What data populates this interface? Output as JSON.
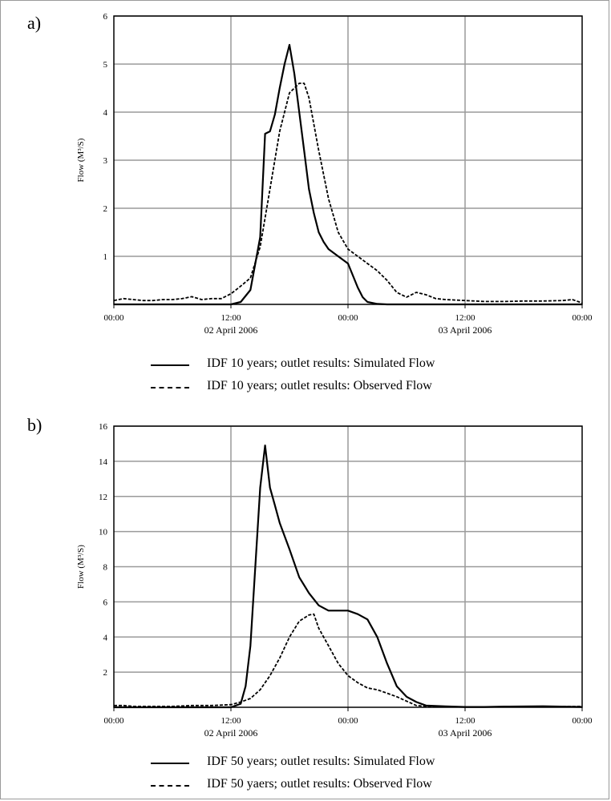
{
  "chart_data": [
    {
      "type": "line",
      "panel_label": "a)",
      "ylabel": "Flow (M³/S)",
      "ylim": [
        0,
        6
      ],
      "yticks": [
        1,
        2,
        3,
        4,
        5,
        6
      ],
      "xlim": [
        0,
        48
      ],
      "xticks": [
        {
          "x": 0,
          "label": "00:00",
          "sublabel": ""
        },
        {
          "x": 12,
          "label": "12:00",
          "sublabel": "02 April 2006"
        },
        {
          "x": 24,
          "label": "00:00",
          "sublabel": ""
        },
        {
          "x": 36,
          "label": "12:00",
          "sublabel": "03 April 2006"
        },
        {
          "x": 48,
          "label": "00:00",
          "sublabel": ""
        }
      ],
      "grid": true,
      "series": [
        {
          "name": "IDF 10 years; outlet results: Simulated Flow",
          "style": "solid",
          "x": [
            0,
            12,
            13,
            14,
            15,
            15.5,
            16,
            16.5,
            17,
            17.5,
            18,
            18.5,
            19,
            19.5,
            20,
            20.5,
            21,
            21.5,
            22,
            23,
            24,
            24.5,
            25,
            25.5,
            26,
            27,
            28,
            48
          ],
          "y": [
            0,
            0,
            0.05,
            0.3,
            1.4,
            3.55,
            3.6,
            3.95,
            4.5,
            5.0,
            5.4,
            4.8,
            4.0,
            3.2,
            2.4,
            1.9,
            1.5,
            1.3,
            1.15,
            1.0,
            0.85,
            0.6,
            0.35,
            0.15,
            0.05,
            0.01,
            0,
            0
          ]
        },
        {
          "name": "IDF 10 years; outlet results: Observed Flow",
          "style": "dashed",
          "x": [
            0,
            1,
            2,
            3,
            4,
            5,
            6,
            7,
            8,
            9,
            10,
            11,
            12,
            13,
            14,
            15,
            16,
            17,
            18,
            19,
            19.5,
            20,
            21,
            22,
            23,
            24,
            25,
            26,
            27,
            28,
            29,
            30,
            31,
            32,
            33,
            34,
            36,
            38,
            40,
            42,
            44,
            46,
            47,
            48
          ],
          "y": [
            0.08,
            0.12,
            0.1,
            0.08,
            0.08,
            0.1,
            0.1,
            0.12,
            0.16,
            0.1,
            0.12,
            0.12,
            0.22,
            0.38,
            0.55,
            1.2,
            2.4,
            3.6,
            4.4,
            4.6,
            4.6,
            4.3,
            3.2,
            2.2,
            1.5,
            1.15,
            1.0,
            0.85,
            0.7,
            0.5,
            0.25,
            0.15,
            0.25,
            0.2,
            0.12,
            0.1,
            0.08,
            0.06,
            0.06,
            0.07,
            0.07,
            0.08,
            0.1,
            0.03
          ]
        }
      ]
    },
    {
      "type": "line",
      "panel_label": "b)",
      "ylabel": "Flow (M³/S)",
      "ylim": [
        0,
        16
      ],
      "yticks": [
        2,
        4,
        6,
        8,
        10,
        12,
        14,
        16
      ],
      "xlim": [
        0,
        48
      ],
      "xticks": [
        {
          "x": 0,
          "label": "00:00",
          "sublabel": ""
        },
        {
          "x": 12,
          "label": "12:00",
          "sublabel": "02 April 2006"
        },
        {
          "x": 24,
          "label": "00:00",
          "sublabel": ""
        },
        {
          "x": 36,
          "label": "12:00",
          "sublabel": "03 April 2006"
        },
        {
          "x": 48,
          "label": "00:00",
          "sublabel": ""
        }
      ],
      "grid": true,
      "series": [
        {
          "name": "IDF 50 years; outlet results: Simulated Flow",
          "style": "solid",
          "x": [
            0,
            12,
            13,
            13.5,
            14,
            14.5,
            15,
            15.5,
            16,
            16.5,
            17,
            18,
            19,
            20,
            21,
            22,
            23,
            24,
            25,
            26,
            27,
            28,
            29,
            30,
            31,
            32,
            34,
            36,
            38,
            40,
            44,
            48
          ],
          "y": [
            0,
            0,
            0.2,
            1.2,
            3.5,
            8.0,
            12.5,
            14.9,
            12.5,
            11.5,
            10.5,
            9.0,
            7.4,
            6.5,
            5.8,
            5.5,
            5.5,
            5.5,
            5.3,
            5.0,
            4.0,
            2.5,
            1.2,
            0.6,
            0.3,
            0.1,
            0.05,
            0.02,
            0.02,
            0.04,
            0.06,
            0.02
          ]
        },
        {
          "name": "IDF 50 yaers; outlet results: Observed Flow",
          "style": "dashed",
          "x": [
            0,
            1,
            2,
            3,
            4,
            6,
            8,
            10,
            12,
            13,
            14,
            15,
            16,
            17,
            18,
            19,
            20,
            20.5,
            21,
            22,
            23,
            24,
            25,
            26,
            27,
            28,
            29,
            30,
            31,
            32,
            34,
            36,
            38,
            40,
            44,
            48
          ],
          "y": [
            0.1,
            0.1,
            0.05,
            0.05,
            0.05,
            0.05,
            0.1,
            0.1,
            0.15,
            0.3,
            0.5,
            1.0,
            1.8,
            2.8,
            4.0,
            4.9,
            5.25,
            5.3,
            4.5,
            3.5,
            2.5,
            1.8,
            1.4,
            1.1,
            1.0,
            0.8,
            0.6,
            0.35,
            0.1,
            0.05,
            0.02,
            0.02,
            0.02,
            0.02,
            0.03,
            0.05
          ]
        }
      ]
    }
  ]
}
